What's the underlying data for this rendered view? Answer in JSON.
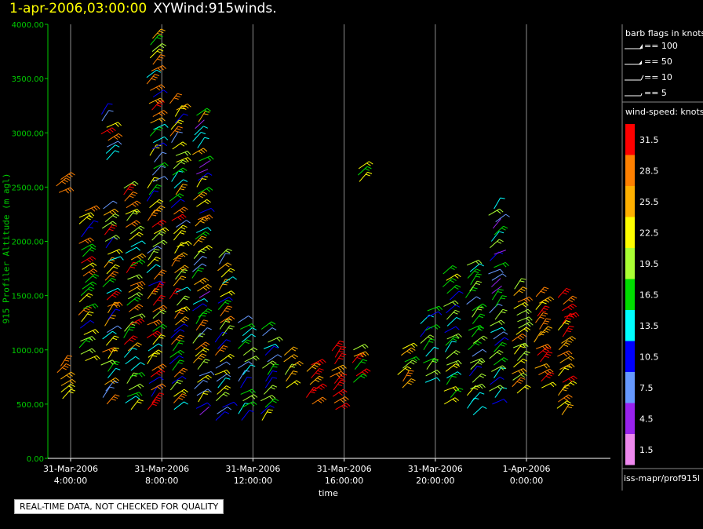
{
  "title": {
    "datetime": "1-apr-2006,03:00:00",
    "product": "XYWind:915winds."
  },
  "axes": {
    "ylabel": "915 Profiler Altitude (m agl)",
    "xlabel": "time",
    "yticks": [
      "0.00",
      "500.00",
      "1000.00",
      "1500.00",
      "2000.00",
      "2500.00",
      "3000.00",
      "3500.00",
      "4000.00"
    ],
    "xticks": [
      {
        "date": "31-Mar-2006",
        "time": "4:00:00"
      },
      {
        "date": "31-Mar-2006",
        "time": "8:00:00"
      },
      {
        "date": "31-Mar-2006",
        "time": "12:00:00"
      },
      {
        "date": "31-Mar-2006",
        "time": "16:00:00"
      },
      {
        "date": "31-Mar-2006",
        "time": "20:00:00"
      },
      {
        "date": "1-Apr-2006",
        "time": "0:00:00"
      }
    ]
  },
  "legend": {
    "flags_title": "barb flags in knots",
    "flags": [
      "== 100",
      "== 50",
      "== 10",
      "== 5"
    ],
    "speed_title": "wind-speed: knots",
    "speed_levels": [
      {
        "label": "31.5",
        "color": "#ff0000"
      },
      {
        "label": "28.5",
        "color": "#ff8000"
      },
      {
        "label": "25.5",
        "color": "#ffb000"
      },
      {
        "label": "22.5",
        "color": "#ffff00"
      },
      {
        "label": "19.5",
        "color": "#aaff33"
      },
      {
        "label": "16.5",
        "color": "#00dd00"
      },
      {
        "label": "13.5",
        "color": "#00ffff"
      },
      {
        "label": "10.5",
        "color": "#0000ff"
      },
      {
        "label": "7.5",
        "color": "#6699ff"
      },
      {
        "label": "4.5",
        "color": "#9922ee"
      },
      {
        "label": "1.5",
        "color": "#ee88ee"
      }
    ]
  },
  "station": "iss-mapr/prof915l",
  "notice": "REAL-TIME DATA, NOT CHECKED FOR QUALITY",
  "chart_data": {
    "type": "scatter",
    "title": "XYWind:915winds.",
    "xlabel": "time",
    "ylabel": "915 Profiler Altitude (m agl)",
    "ylim": [
      0,
      4000
    ],
    "xlim_hours_range": "31-Mar-2006 03:00 to 1-Apr-2006 03:00",
    "grid": "vertical lines at x ticks",
    "series": [
      {
        "time_hours": 3.5,
        "altitude_ranges": [
          [
            550,
            900
          ],
          [
            2450,
            2600
          ]
        ],
        "speed_knots_range": [
          22,
          30
        ]
      },
      {
        "time_hours": 4.5,
        "altitude_ranges": [
          [
            900,
            2300
          ]
        ],
        "speed_knots_range": [
          10,
          32
        ]
      },
      {
        "time_hours": 5.5,
        "altitude_ranges": [
          [
            500,
            2300
          ],
          [
            2750,
            3200
          ]
        ],
        "speed_knots_range": [
          7,
          32
        ]
      },
      {
        "time_hours": 6.5,
        "altitude_ranges": [
          [
            450,
            2500
          ]
        ],
        "speed_knots_range": [
          10,
          32
        ]
      },
      {
        "time_hours": 7.5,
        "altitude_ranges": [
          [
            450,
            3900
          ]
        ],
        "speed_knots_range": [
          7,
          33
        ]
      },
      {
        "time_hours": 8.5,
        "altitude_ranges": [
          [
            450,
            3300
          ]
        ],
        "speed_knots_range": [
          7,
          31
        ]
      },
      {
        "time_hours": 9.5,
        "altitude_ranges": [
          [
            400,
            3200
          ]
        ],
        "speed_knots_range": [
          4,
          29
        ]
      },
      {
        "time_hours": 10.5,
        "altitude_ranges": [
          [
            350,
            1900
          ]
        ],
        "speed_knots_range": [
          7,
          30
        ]
      },
      {
        "time_hours": 11.5,
        "altitude_ranges": [
          [
            350,
            1300
          ]
        ],
        "speed_knots_range": [
          7,
          20
        ]
      },
      {
        "time_hours": 12.5,
        "altitude_ranges": [
          [
            350,
            1200
          ]
        ],
        "speed_knots_range": [
          7,
          22
        ]
      },
      {
        "time_hours": 13.5,
        "altitude_ranges": [
          [
            650,
            1000
          ]
        ],
        "speed_knots_range": [
          20,
          25
        ]
      },
      {
        "time_hours": 14.5,
        "altitude_ranges": [
          [
            500,
            900
          ]
        ],
        "speed_knots_range": [
          25,
          32
        ]
      },
      {
        "time_hours": 15.5,
        "altitude_ranges": [
          [
            450,
            1000
          ]
        ],
        "speed_knots_range": [
          25,
          33
        ]
      },
      {
        "time_hours": 16.5,
        "altitude_ranges": [
          [
            700,
            1000
          ],
          [
            2550,
            2700
          ]
        ],
        "speed_knots_range": [
          16,
          32
        ]
      },
      {
        "time_hours": 18.5,
        "altitude_ranges": [
          [
            650,
            1050
          ]
        ],
        "speed_knots_range": [
          16,
          30
        ]
      },
      {
        "time_hours": 19.5,
        "altitude_ranges": [
          [
            700,
            1400
          ]
        ],
        "speed_knots_range": [
          10,
          24
        ]
      },
      {
        "time_hours": 20.5,
        "altitude_ranges": [
          [
            500,
            1700
          ]
        ],
        "speed_knots_range": [
          10,
          23
        ]
      },
      {
        "time_hours": 21.5,
        "altitude_ranges": [
          [
            400,
            1800
          ]
        ],
        "speed_knots_range": [
          7,
          22
        ]
      },
      {
        "time_hours": 22.5,
        "altitude_ranges": [
          [
            500,
            2300
          ]
        ],
        "speed_knots_range": [
          4,
          20
        ]
      },
      {
        "time_hours": 23.5,
        "altitude_ranges": [
          [
            600,
            1600
          ]
        ],
        "speed_knots_range": [
          18,
          28
        ]
      },
      {
        "time_hours": 24.5,
        "altitude_ranges": [
          [
            650,
            1500
          ]
        ],
        "speed_knots_range": [
          22,
          32
        ]
      },
      {
        "time_hours": 25.5,
        "altitude_ranges": [
          [
            400,
            1500
          ]
        ],
        "speed_knots_range": [
          22,
          33
        ]
      }
    ]
  }
}
